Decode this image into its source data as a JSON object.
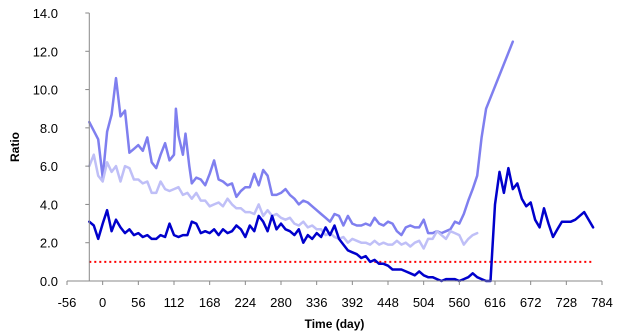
{
  "chart_data": {
    "type": "line",
    "title": "",
    "xlabel": "Time (day)",
    "ylabel": "Ratio",
    "xlim": [
      -56,
      784
    ],
    "ylim": [
      0,
      14
    ],
    "xticks": [
      -56,
      0,
      56,
      112,
      168,
      224,
      280,
      336,
      392,
      448,
      504,
      560,
      616,
      672,
      728,
      784
    ],
    "yticks": [
      0,
      2,
      4,
      6,
      8,
      10,
      12,
      14
    ],
    "ytick_labels": [
      "0.0",
      "2.0",
      "4.0",
      "6.0",
      "8.0",
      "10.0",
      "12.0",
      "14.0"
    ],
    "grid": false,
    "legend": "none",
    "reference_line": {
      "y": 1.0,
      "color": "#ff0000",
      "style": "dotted"
    },
    "series": [
      {
        "color": "#7f7fef",
        "points": [
          [
            -21,
            8.3
          ],
          [
            -7,
            7.4
          ],
          [
            0,
            5.4
          ],
          [
            7,
            7.8
          ],
          [
            14,
            8.7
          ],
          [
            21,
            10.6
          ],
          [
            28,
            8.6
          ],
          [
            35,
            8.9
          ],
          [
            42,
            6.7
          ],
          [
            49,
            6.9
          ],
          [
            56,
            7.1
          ],
          [
            63,
            6.8
          ],
          [
            70,
            7.5
          ],
          [
            77,
            6.2
          ],
          [
            84,
            5.9
          ],
          [
            91,
            6.6
          ],
          [
            98,
            7.2
          ],
          [
            105,
            6.3
          ],
          [
            112,
            6.6
          ],
          [
            115,
            9.0
          ],
          [
            119,
            7.6
          ],
          [
            126,
            6.6
          ],
          [
            130,
            7.7
          ],
          [
            136,
            6.0
          ],
          [
            140,
            5.1
          ],
          [
            147,
            5.4
          ],
          [
            154,
            5.3
          ],
          [
            161,
            5.0
          ],
          [
            168,
            5.6
          ],
          [
            175,
            6.3
          ],
          [
            182,
            5.3
          ],
          [
            189,
            5.2
          ],
          [
            196,
            5.0
          ],
          [
            203,
            5.1
          ],
          [
            210,
            4.4
          ],
          [
            217,
            4.7
          ],
          [
            224,
            4.9
          ],
          [
            231,
            4.9
          ],
          [
            238,
            5.6
          ],
          [
            245,
            5.0
          ],
          [
            252,
            5.8
          ],
          [
            259,
            5.5
          ],
          [
            266,
            4.5
          ],
          [
            273,
            4.5
          ],
          [
            280,
            4.6
          ],
          [
            287,
            4.8
          ],
          [
            294,
            4.5
          ],
          [
            301,
            4.3
          ],
          [
            308,
            4.0
          ],
          [
            315,
            4.2
          ],
          [
            322,
            4.1
          ],
          [
            329,
            3.9
          ],
          [
            336,
            3.7
          ],
          [
            343,
            3.5
          ],
          [
            350,
            3.3
          ],
          [
            357,
            3.1
          ],
          [
            364,
            3.5
          ],
          [
            371,
            3.4
          ],
          [
            378,
            2.9
          ],
          [
            385,
            3.4
          ],
          [
            392,
            3.0
          ],
          [
            399,
            2.9
          ],
          [
            406,
            2.9
          ],
          [
            413,
            3.0
          ],
          [
            420,
            2.9
          ],
          [
            427,
            3.3
          ],
          [
            434,
            3.0
          ],
          [
            441,
            2.9
          ],
          [
            448,
            3.1
          ],
          [
            455,
            3.0
          ],
          [
            462,
            2.6
          ],
          [
            469,
            2.4
          ],
          [
            476,
            2.8
          ],
          [
            483,
            2.9
          ],
          [
            490,
            2.8
          ],
          [
            497,
            2.8
          ],
          [
            504,
            3.2
          ],
          [
            511,
            2.5
          ],
          [
            518,
            2.5
          ],
          [
            525,
            2.6
          ],
          [
            532,
            2.5
          ],
          [
            539,
            2.6
          ],
          [
            546,
            2.7
          ],
          [
            553,
            3.1
          ],
          [
            560,
            3.0
          ],
          [
            567,
            3.5
          ],
          [
            574,
            4.2
          ],
          [
            581,
            4.8
          ],
          [
            588,
            5.5
          ],
          [
            595,
            7.5
          ],
          [
            602,
            9.0
          ],
          [
            644,
            12.5
          ]
        ]
      },
      {
        "color": "#bfbff7",
        "points": [
          [
            -21,
            6.0
          ],
          [
            -14,
            6.6
          ],
          [
            -7,
            5.5
          ],
          [
            0,
            5.2
          ],
          [
            7,
            6.2
          ],
          [
            14,
            5.7
          ],
          [
            21,
            6.0
          ],
          [
            28,
            5.2
          ],
          [
            35,
            6.0
          ],
          [
            42,
            5.9
          ],
          [
            49,
            5.3
          ],
          [
            56,
            5.3
          ],
          [
            63,
            5.1
          ],
          [
            70,
            5.2
          ],
          [
            77,
            4.6
          ],
          [
            84,
            4.6
          ],
          [
            91,
            5.2
          ],
          [
            98,
            4.8
          ],
          [
            105,
            4.7
          ],
          [
            112,
            4.8
          ],
          [
            119,
            4.9
          ],
          [
            126,
            4.5
          ],
          [
            133,
            4.6
          ],
          [
            140,
            4.3
          ],
          [
            147,
            4.6
          ],
          [
            154,
            4.2
          ],
          [
            161,
            4.2
          ],
          [
            168,
            3.9
          ],
          [
            175,
            4.0
          ],
          [
            182,
            4.1
          ],
          [
            189,
            3.9
          ],
          [
            196,
            4.3
          ],
          [
            203,
            4.0
          ],
          [
            210,
            3.8
          ],
          [
            217,
            3.8
          ],
          [
            224,
            3.6
          ],
          [
            231,
            3.6
          ],
          [
            238,
            3.5
          ],
          [
            245,
            4.0
          ],
          [
            252,
            3.4
          ],
          [
            259,
            3.7
          ],
          [
            266,
            3.4
          ],
          [
            273,
            3.5
          ],
          [
            280,
            3.3
          ],
          [
            287,
            3.2
          ],
          [
            294,
            3.3
          ],
          [
            301,
            3.0
          ],
          [
            308,
            2.9
          ],
          [
            315,
            3.1
          ],
          [
            322,
            2.8
          ],
          [
            329,
            2.9
          ],
          [
            336,
            2.7
          ],
          [
            343,
            2.7
          ],
          [
            350,
            2.4
          ],
          [
            357,
            2.5
          ],
          [
            364,
            2.3
          ],
          [
            371,
            2.2
          ],
          [
            378,
            2.3
          ],
          [
            385,
            2.0
          ],
          [
            392,
            2.2
          ],
          [
            399,
            2.1
          ],
          [
            406,
            2.0
          ],
          [
            413,
            2.0
          ],
          [
            420,
            1.9
          ],
          [
            427,
            2.1
          ],
          [
            434,
            1.9
          ],
          [
            441,
            2.0
          ],
          [
            448,
            1.9
          ],
          [
            455,
            1.9
          ],
          [
            462,
            2.1
          ],
          [
            469,
            1.9
          ],
          [
            476,
            2.0
          ],
          [
            483,
            1.8
          ],
          [
            490,
            2.0
          ],
          [
            497,
            2.1
          ],
          [
            504,
            1.7
          ],
          [
            511,
            2.2
          ],
          [
            518,
            2.2
          ],
          [
            525,
            2.6
          ],
          [
            532,
            2.4
          ],
          [
            539,
            2.2
          ],
          [
            546,
            2.6
          ],
          [
            553,
            2.5
          ],
          [
            560,
            2.4
          ],
          [
            567,
            1.9
          ],
          [
            574,
            2.2
          ],
          [
            581,
            2.4
          ],
          [
            588,
            2.5
          ]
        ]
      },
      {
        "color": "#0000cc",
        "points": [
          [
            -21,
            3.1
          ],
          [
            -14,
            2.9
          ],
          [
            -7,
            2.2
          ],
          [
            0,
            3.0
          ],
          [
            7,
            3.7
          ],
          [
            14,
            2.6
          ],
          [
            21,
            3.2
          ],
          [
            28,
            2.8
          ],
          [
            35,
            2.5
          ],
          [
            42,
            2.7
          ],
          [
            49,
            2.4
          ],
          [
            56,
            2.5
          ],
          [
            63,
            2.3
          ],
          [
            70,
            2.4
          ],
          [
            77,
            2.2
          ],
          [
            84,
            2.2
          ],
          [
            91,
            2.4
          ],
          [
            98,
            2.3
          ],
          [
            105,
            3.0
          ],
          [
            112,
            2.4
          ],
          [
            119,
            2.3
          ],
          [
            126,
            2.4
          ],
          [
            133,
            2.4
          ],
          [
            140,
            3.1
          ],
          [
            147,
            3.0
          ],
          [
            154,
            2.5
          ],
          [
            161,
            2.6
          ],
          [
            168,
            2.5
          ],
          [
            175,
            2.7
          ],
          [
            182,
            2.4
          ],
          [
            189,
            2.7
          ],
          [
            196,
            2.5
          ],
          [
            203,
            2.6
          ],
          [
            210,
            2.9
          ],
          [
            217,
            2.7
          ],
          [
            224,
            2.3
          ],
          [
            231,
            2.9
          ],
          [
            238,
            2.6
          ],
          [
            245,
            3.4
          ],
          [
            252,
            3.1
          ],
          [
            259,
            2.6
          ],
          [
            266,
            3.4
          ],
          [
            273,
            2.7
          ],
          [
            280,
            3.0
          ],
          [
            287,
            2.7
          ],
          [
            294,
            2.6
          ],
          [
            301,
            2.4
          ],
          [
            308,
            2.7
          ],
          [
            315,
            2.0
          ],
          [
            322,
            2.4
          ],
          [
            329,
            2.2
          ],
          [
            336,
            2.5
          ],
          [
            343,
            2.3
          ],
          [
            350,
            2.8
          ],
          [
            357,
            2.4
          ],
          [
            364,
            2.9
          ],
          [
            371,
            2.2
          ],
          [
            378,
            1.9
          ],
          [
            385,
            1.6
          ],
          [
            392,
            1.5
          ],
          [
            399,
            1.4
          ],
          [
            406,
            1.2
          ],
          [
            413,
            1.3
          ],
          [
            420,
            1.0
          ],
          [
            427,
            1.1
          ],
          [
            434,
            0.9
          ],
          [
            441,
            0.9
          ],
          [
            448,
            0.8
          ],
          [
            455,
            0.6
          ],
          [
            462,
            0.6
          ],
          [
            469,
            0.6
          ],
          [
            476,
            0.5
          ],
          [
            483,
            0.4
          ],
          [
            490,
            0.3
          ],
          [
            497,
            0.5
          ],
          [
            504,
            0.3
          ],
          [
            511,
            0.2
          ],
          [
            518,
            0.2
          ],
          [
            525,
            0.1
          ],
          [
            532,
            0.0
          ],
          [
            539,
            0.1
          ],
          [
            546,
            0.1
          ],
          [
            553,
            0.1
          ],
          [
            560,
            0.0
          ],
          [
            567,
            0.1
          ],
          [
            574,
            0.2
          ],
          [
            581,
            0.4
          ],
          [
            588,
            0.2
          ],
          [
            595,
            0.1
          ],
          [
            602,
            0.0
          ],
          [
            609,
            0.0
          ],
          [
            616,
            4.0
          ],
          [
            623,
            5.7
          ],
          [
            630,
            4.6
          ],
          [
            637,
            5.9
          ],
          [
            644,
            4.8
          ],
          [
            651,
            5.1
          ],
          [
            658,
            4.3
          ],
          [
            665,
            3.9
          ],
          [
            672,
            4.1
          ],
          [
            679,
            3.2
          ],
          [
            686,
            2.8
          ],
          [
            693,
            3.8
          ],
          [
            700,
            3.0
          ],
          [
            707,
            2.3
          ],
          [
            714,
            2.7
          ],
          [
            721,
            3.1
          ],
          [
            735,
            3.1
          ],
          [
            742,
            3.2
          ],
          [
            756,
            3.6
          ],
          [
            770,
            2.8
          ]
        ]
      }
    ]
  }
}
